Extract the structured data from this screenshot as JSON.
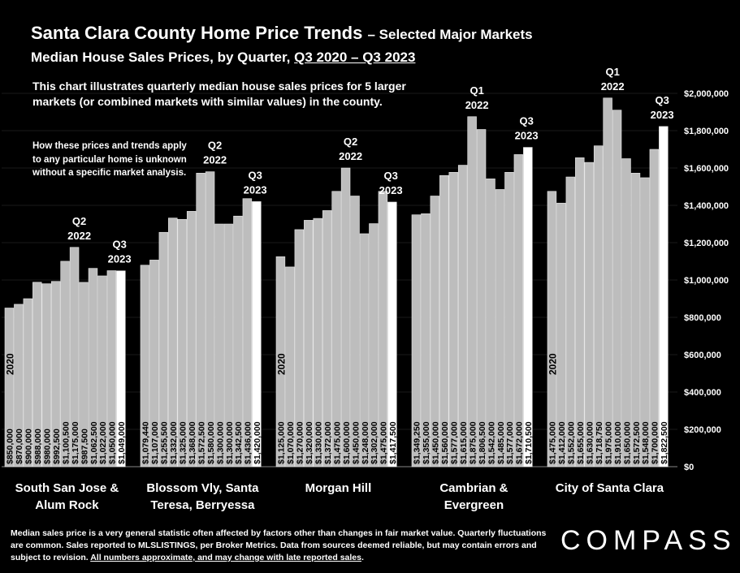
{
  "header": {
    "title_main": "Santa Clara County Home Price Trends",
    "title_suffix": "– Selected Major Markets",
    "subtitle_prefix": "Median House Sales Prices, by Quarter, ",
    "subtitle_range": "Q3 2020 – Q3 2023"
  },
  "description": "This chart illustrates quarterly median house sales prices for 5 larger markets (or combined markets with similar values) in the county.",
  "note": "How these prices and trends apply to any particular home is unknown without a specific market analysis.",
  "footer": {
    "text": "Median sales price is a very general statistic often affected by factors other than changes in fair market value. Quarterly fluctuations are common. Sales reported to MLSLISTINGS, per Broker Metrics. Data from sources deemed reliable, but may contain errors and subject to revision. ",
    "underlined": "All numbers approximate, and may change with late reported sales",
    "end": "."
  },
  "logo": "COMPASS",
  "chart_data": {
    "type": "bar",
    "ylim": [
      0,
      2000000
    ],
    "y_ticks": [
      "$0",
      "$200,000",
      "$400,000",
      "$600,000",
      "$800,000",
      "$1,000,000",
      "$1,200,000",
      "$1,400,000",
      "$1,600,000",
      "$1,800,000",
      "$2,000,000"
    ],
    "groups": [
      {
        "name": "South San Jose & Alum Rock",
        "values": [
          850000,
          870000,
          900000,
          988000,
          980000,
          992500,
          1100500,
          1175000,
          987500,
          1062500,
          1022000,
          1050000,
          1049000
        ],
        "labels": [
          "$850,000",
          "$870,000",
          "$900,000",
          "$988,000",
          "$980,000",
          "$992,500",
          "$1,100,500",
          "$1,175,000",
          "$987,500",
          "$1,062,500",
          "$1,022,000",
          "$1,050,000",
          "$1,049,000"
        ],
        "year_label": "2020",
        "peak_label": [
          "Q2",
          "2022"
        ],
        "end_label": [
          "Q3",
          "2023"
        ]
      },
      {
        "name": "Blossom Vly, Santa Teresa, Berryessa",
        "values": [
          1079440,
          1107000,
          1255500,
          1332000,
          1325000,
          1368000,
          1572500,
          1580000,
          1300000,
          1300000,
          1342500,
          1436000,
          1420000
        ],
        "labels": [
          "$1,079,440",
          "$1,107,000",
          "$1,255,500",
          "$1,332,000",
          "$1,325,000",
          "$1,368,000",
          "$1,572,500",
          "$1,580,000",
          "$1,300,000",
          "$1,300,000",
          "$1,342,500",
          "$1,436,000",
          "$1,420,000"
        ],
        "year_label": "",
        "peak_label": [
          "Q2",
          "2022"
        ],
        "end_label": [
          "Q3",
          "2023"
        ]
      },
      {
        "name": "Morgan Hill",
        "values": [
          1125000,
          1070000,
          1270000,
          1320000,
          1330000,
          1372000,
          1475000,
          1600000,
          1450000,
          1248000,
          1302000,
          1475000,
          1417500
        ],
        "labels": [
          "$1,125,000",
          "$1,070,000",
          "$1,270,000",
          "$1,320,000",
          "$1,330,000",
          "$1,372,000",
          "$1,475,000",
          "$1,600,000",
          "$1,450,000",
          "$1,248,000",
          "$1,302,000",
          "$1,475,000",
          "$1,417,500"
        ],
        "year_label": "2020",
        "peak_label": [
          "Q2",
          "2022"
        ],
        "end_label": [
          "Q3",
          "2023"
        ]
      },
      {
        "name": "Cambrian & Evergreen",
        "values": [
          1349250,
          1355000,
          1450000,
          1560000,
          1577000,
          1615000,
          1875000,
          1806500,
          1542000,
          1485000,
          1577000,
          1672000,
          1710500
        ],
        "labels": [
          "$1,349,250",
          "$1,355,000",
          "$1,450,000",
          "$1,560,000",
          "$1,577,000",
          "$1,615,000",
          "$1,875,000",
          "$1,806,500",
          "$1,542,000",
          "$1,485,000",
          "$1,577,000",
          "$1,672,000",
          "$1,710,500"
        ],
        "year_label": "",
        "peak_label": [
          "Q1",
          "2022"
        ],
        "end_label": [
          "Q3",
          "2023"
        ]
      },
      {
        "name": "City of Santa Clara",
        "values": [
          1475000,
          1412000,
          1552000,
          1655000,
          1630000,
          1718750,
          1975000,
          1910000,
          1650000,
          1572500,
          1548000,
          1700000,
          1822500
        ],
        "labels": [
          "$1,475,000",
          "$1,412,000",
          "$1,552,000",
          "$1,655,000",
          "$1,630,000",
          "$1,718,750",
          "$1,975,000",
          "$1,910,000",
          "$1,650,000",
          "$1,572,500",
          "$1,548,000",
          "$1,700,000",
          "$1,822,500"
        ],
        "year_label": "2020",
        "peak_label": [
          "Q1",
          "2022"
        ],
        "end_label": [
          "Q3",
          "2023"
        ]
      }
    ],
    "group_labels": [
      [
        "South San Jose &",
        "Alum Rock"
      ],
      [
        "Blossom Vly, Santa",
        "Teresa, Berryessa"
      ],
      [
        "Morgan Hill"
      ],
      [
        "Cambrian &",
        "Evergreen"
      ],
      [
        "City of Santa Clara"
      ]
    ]
  }
}
